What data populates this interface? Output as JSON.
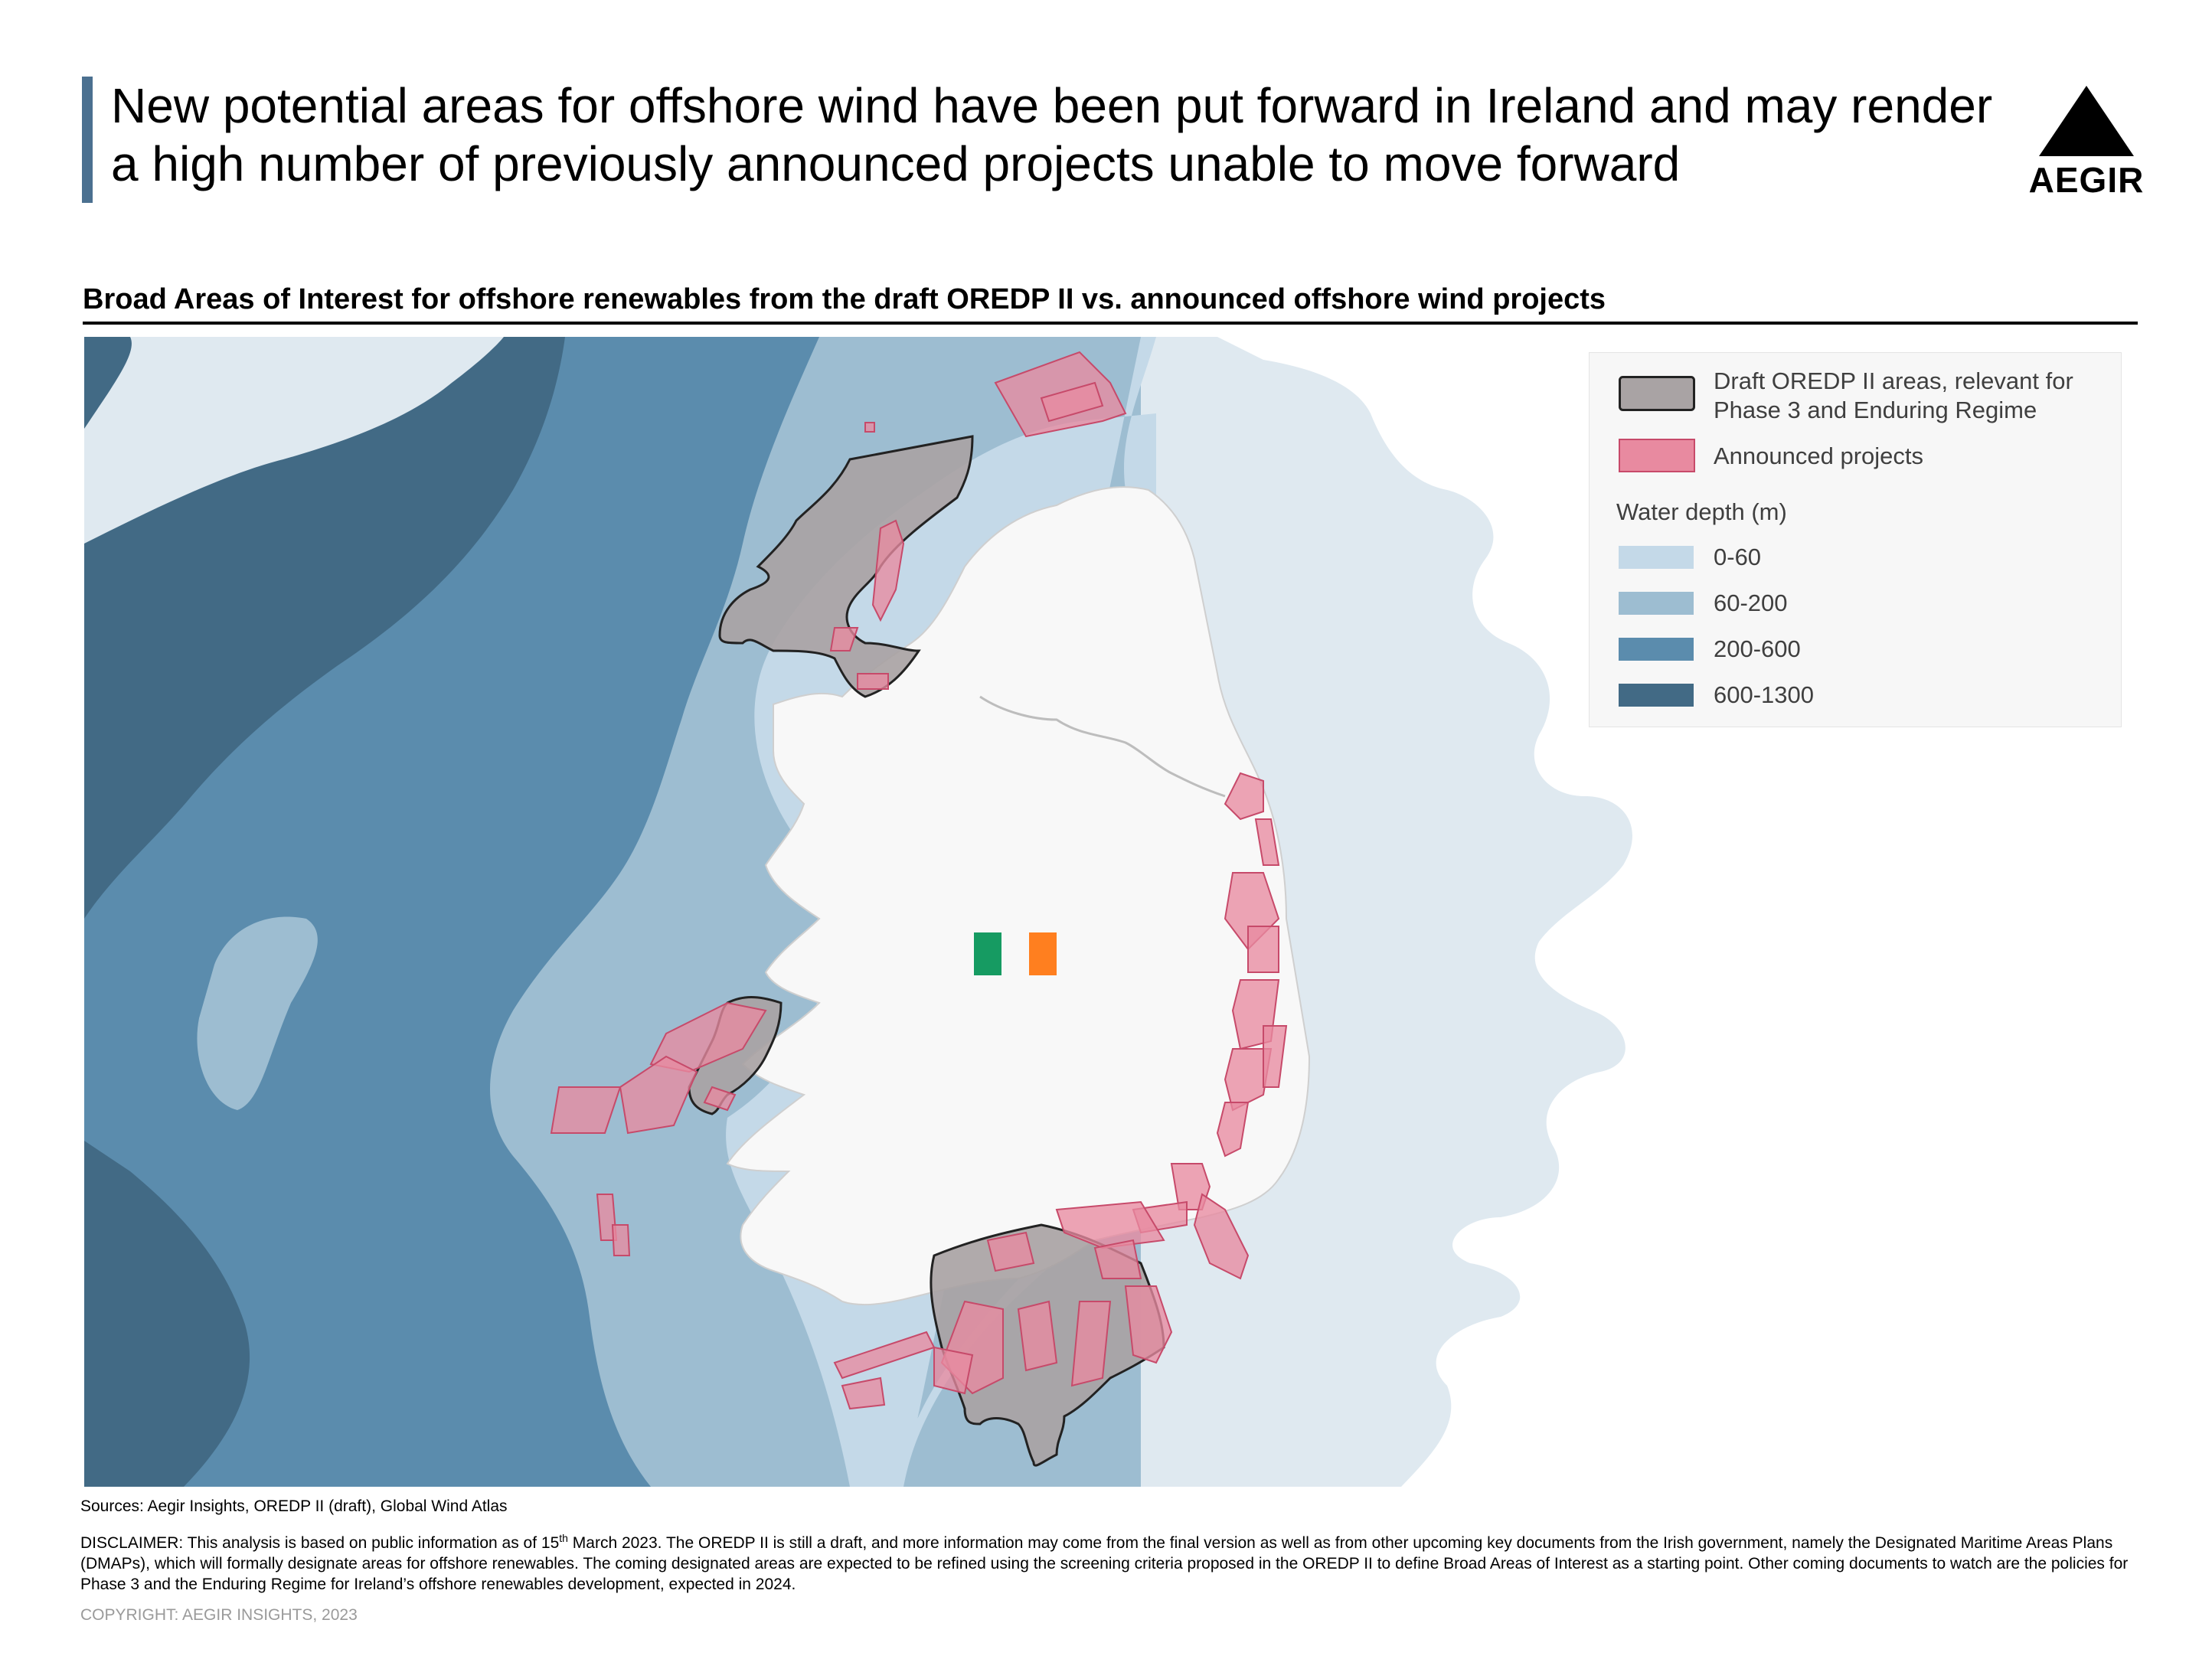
{
  "header": {
    "title_line1": "New potential areas for offshore wind have been put forward in Ireland and may render",
    "title_line2": "a high number of previously announced projects unable to move forward",
    "logo_text": "AEGIR"
  },
  "map": {
    "subtitle": "Broad Areas of Interest for offshore renewables from the draft OREDP II vs. announced offshore wind projects",
    "legend": {
      "oredp_line1": "Draft OREDP II areas, relevant for",
      "oredp_line2": "Phase 3 and Enduring Regime",
      "announced": "Announced projects",
      "depth_title": "Water depth (m)",
      "depth_classes": [
        "0-60",
        "60-200",
        "200-600",
        "600-1300"
      ]
    },
    "colors": {
      "land": "#f8f8f8",
      "other_land": "#ffffff",
      "sea_far": "#dfe9f0",
      "depth_0_60": "#c4d9e8",
      "depth_60_200": "#9dbdd1",
      "depth_200_600": "#5b8cad",
      "depth_600_1300": "#426a85",
      "oredp_fill": "#a9a3a4",
      "oredp_stroke": "#222222",
      "project_fill": "#e88aa0",
      "project_stroke": "#c74a6a",
      "flag_green": "#169b62",
      "flag_orange": "#ff7f1f",
      "title_bar": "#4b7090"
    },
    "icons": [
      "aegir-triangle-logo",
      "ireland-flag-icon"
    ]
  },
  "footer": {
    "sources": "Sources: Aegir Insights, OREDP II (draft), Global Wind Atlas",
    "disclaimer_part1": "DISCLAIMER: This analysis is based on public information as of 15",
    "disclaimer_sup": "th",
    "disclaimer_part2": " March 2023. The OREDP II is still a draft, and more information may come from the final version as well as from other upcoming key documents from the Irish government, namely the Designated Maritime Areas Plans (DMAPs), which will formally designate areas for offshore renewables. The coming designated areas are expected to be refined using the screening criteria proposed in the OREDP II to define Broad Areas of Interest as a starting point. Other coming documents to watch are the policies for Phase 3 and the Enduring Regime for Ireland’s offshore renewables development, expected in 2024.",
    "copyright": "COPYRIGHT: AEGIR INSIGHTS, 2023"
  }
}
